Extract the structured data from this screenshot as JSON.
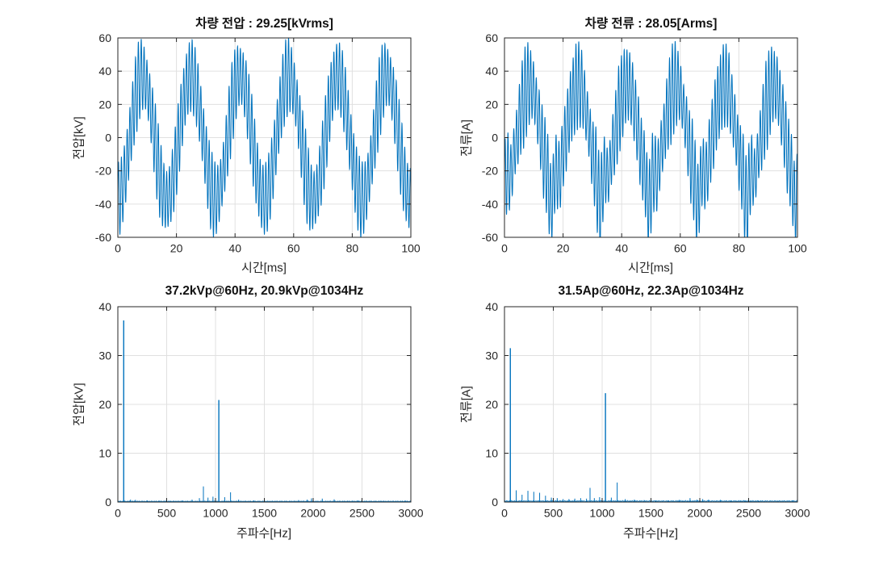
{
  "figure": {
    "background": "#ffffff",
    "line_color": "#0072BD",
    "grid_color": "#e0e0e0",
    "axis_color": "#262626",
    "text_color": "#262626"
  },
  "chart_data": [
    {
      "id": "voltage-time",
      "type": "line",
      "title": "차량 전압 : 29.25[kVrms]",
      "xlabel": "시간[ms]",
      "ylabel": "전압[kV]",
      "xlim": [
        0,
        100
      ],
      "ylim": [
        -60,
        60
      ],
      "xticks": [
        0,
        20,
        40,
        60,
        80,
        100
      ],
      "yticks": [
        -60,
        -40,
        -20,
        0,
        20,
        40,
        60
      ],
      "grid": true,
      "signal": {
        "duration_ms": 100,
        "sample_step_ms": 0.025,
        "components": [
          {
            "freq_hz": 60,
            "amp": 37.2,
            "phase_deg": -90
          },
          {
            "freq_hz": 876,
            "amp": 3.2,
            "phase_deg": 45
          },
          {
            "freq_hz": 1034,
            "amp": 20.9,
            "phase_deg": 0
          },
          {
            "freq_hz": 1154,
            "amp": 2.0,
            "phase_deg": 120
          }
        ]
      }
    },
    {
      "id": "current-time",
      "type": "line",
      "title": "차량 전류 : 28.05[Arms]",
      "xlabel": "시간[ms]",
      "ylabel": "전류[A]",
      "xlim": [
        0,
        100
      ],
      "ylim": [
        -60,
        60
      ],
      "xticks": [
        0,
        20,
        40,
        60,
        80,
        100
      ],
      "yticks": [
        -60,
        -40,
        -20,
        0,
        20,
        40,
        60
      ],
      "grid": true,
      "signal": {
        "duration_ms": 100,
        "sample_step_ms": 0.025,
        "components": [
          {
            "freq_hz": 60,
            "amp": 31.5,
            "phase_deg": -90
          },
          {
            "freq_hz": 120,
            "amp": 2.4,
            "phase_deg": 0
          },
          {
            "freq_hz": 180,
            "amp": 1.5,
            "phase_deg": 0
          },
          {
            "freq_hz": 240,
            "amp": 2.3,
            "phase_deg": 0
          },
          {
            "freq_hz": 300,
            "amp": 2.1,
            "phase_deg": 0
          },
          {
            "freq_hz": 360,
            "amp": 1.9,
            "phase_deg": 0
          },
          {
            "freq_hz": 420,
            "amp": 1.3,
            "phase_deg": 0
          },
          {
            "freq_hz": 876,
            "amp": 2.9,
            "phase_deg": 30
          },
          {
            "freq_hz": 1034,
            "amp": 22.3,
            "phase_deg": 0
          },
          {
            "freq_hz": 1154,
            "amp": 4.0,
            "phase_deg": 60
          }
        ]
      }
    },
    {
      "id": "voltage-spectrum",
      "type": "stem",
      "title": "37.2kVp@60Hz, 20.9kVp@1034Hz",
      "xlabel": "주파수[Hz]",
      "ylabel": "전압[kV]",
      "xlim": [
        0,
        3000
      ],
      "ylim": [
        0,
        40
      ],
      "xticks": [
        0,
        500,
        1000,
        1500,
        2000,
        2500,
        3000
      ],
      "yticks": [
        0,
        10,
        20,
        30,
        40
      ],
      "grid": true,
      "noise_floor": 0.22,
      "peaks": [
        [
          60,
          37.2
        ],
        [
          130,
          0.5
        ],
        [
          180,
          0.45
        ],
        [
          300,
          0.35
        ],
        [
          420,
          0.3
        ],
        [
          540,
          0.25
        ],
        [
          660,
          0.3
        ],
        [
          760,
          0.5
        ],
        [
          835,
          0.8
        ],
        [
          876,
          3.2
        ],
        [
          923,
          0.9
        ],
        [
          974,
          1.1
        ],
        [
          1034,
          20.9
        ],
        [
          1094,
          1.0
        ],
        [
          1154,
          2.0
        ],
        [
          1237,
          0.5
        ],
        [
          1390,
          0.35
        ],
        [
          1851,
          0.4
        ],
        [
          1939,
          0.5
        ],
        [
          1983,
          0.75
        ],
        [
          2093,
          0.7
        ],
        [
          2215,
          0.55
        ],
        [
          2460,
          0.3
        ],
        [
          2700,
          0.25
        ],
        [
          2940,
          0.3
        ]
      ]
    },
    {
      "id": "current-spectrum",
      "type": "stem",
      "title": "31.5Ap@60Hz, 22.3Ap@1034Hz",
      "xlabel": "주파수[Hz]",
      "ylabel": "전류[A]",
      "xlim": [
        0,
        3000
      ],
      "ylim": [
        0,
        40
      ],
      "xticks": [
        0,
        500,
        1000,
        1500,
        2000,
        2500,
        3000
      ],
      "yticks": [
        0,
        10,
        20,
        30,
        40
      ],
      "grid": true,
      "noise_floor": 0.3,
      "peaks": [
        [
          60,
          31.5
        ],
        [
          120,
          2.4
        ],
        [
          180,
          1.5
        ],
        [
          240,
          2.3
        ],
        [
          300,
          2.1
        ],
        [
          360,
          1.9
        ],
        [
          420,
          1.3
        ],
        [
          480,
          0.9
        ],
        [
          540,
          0.8
        ],
        [
          600,
          0.6
        ],
        [
          660,
          0.6
        ],
        [
          720,
          0.7
        ],
        [
          780,
          0.8
        ],
        [
          840,
          0.7
        ],
        [
          876,
          2.9
        ],
        [
          920,
          0.8
        ],
        [
          974,
          1.0
        ],
        [
          1034,
          22.3
        ],
        [
          1094,
          0.9
        ],
        [
          1154,
          4.0
        ],
        [
          1237,
          0.6
        ],
        [
          1330,
          0.5
        ],
        [
          1430,
          0.4
        ],
        [
          1550,
          0.35
        ],
        [
          1680,
          0.3
        ],
        [
          1790,
          0.45
        ],
        [
          1900,
          0.8
        ],
        [
          1970,
          0.5
        ],
        [
          2030,
          0.6
        ],
        [
          2090,
          0.5
        ],
        [
          2210,
          0.45
        ],
        [
          2320,
          0.35
        ],
        [
          2460,
          0.3
        ],
        [
          2600,
          0.3
        ],
        [
          2800,
          0.25
        ],
        [
          2950,
          0.35
        ]
      ]
    }
  ]
}
